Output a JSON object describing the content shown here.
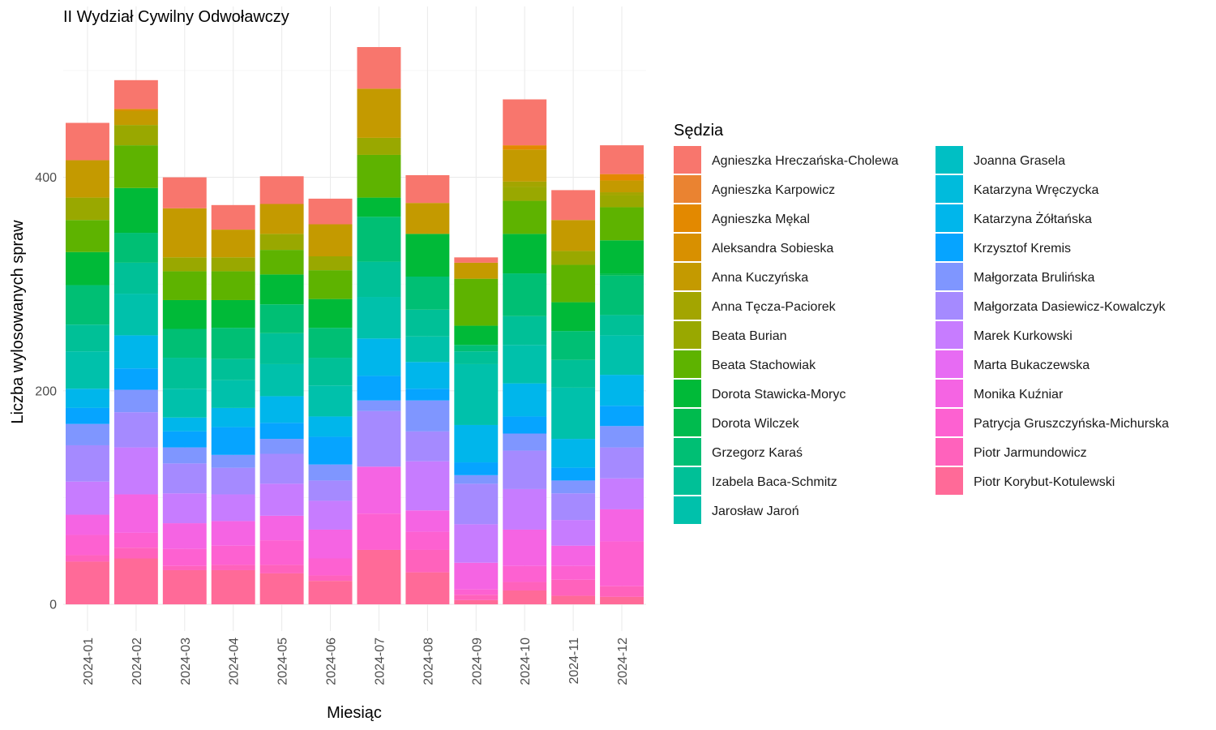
{
  "chart_data": {
    "type": "bar",
    "stacked": true,
    "title": "II Wydział Cywilny Odwoławczy",
    "xlabel": "Miesiąc",
    "ylabel": "Liczba wylosowanych spraw",
    "ylim": [
      -25,
      560
    ],
    "yticks": [
      0,
      200,
      400
    ],
    "grid": true,
    "legend": {
      "title": "Sędzia",
      "position": "right",
      "columns": 2
    },
    "categories": [
      "2024-01",
      "2024-02",
      "2024-03",
      "2024-04",
      "2024-05",
      "2024-06",
      "2024-07",
      "2024-08",
      "2024-09",
      "2024-10",
      "2024-11",
      "2024-12"
    ],
    "series": [
      {
        "name": "Agnieszka Hreczańska-Cholewa",
        "color": "#F8766D",
        "values": [
          35,
          27,
          29,
          23,
          26,
          24,
          39,
          26,
          5,
          43,
          28,
          27
        ]
      },
      {
        "name": "Agnieszka Karpowicz",
        "color": "#EA8331",
        "values": [
          0,
          0,
          0,
          0,
          0,
          0,
          0,
          0,
          0,
          0,
          0,
          0
        ]
      },
      {
        "name": "Agnieszka Mękal",
        "color": "#E38900",
        "values": [
          0,
          0,
          0,
          0,
          0,
          0,
          0,
          0,
          0,
          4,
          0,
          6
        ]
      },
      {
        "name": "Aleksandra Sobieska",
        "color": "#D89000",
        "values": [
          0,
          2,
          0,
          0,
          0,
          0,
          0,
          0,
          0,
          0,
          0,
          0
        ]
      },
      {
        "name": "Anna Kuczyńska",
        "color": "#C49A00",
        "values": [
          35,
          13,
          46,
          26,
          28,
          30,
          46,
          29,
          15,
          30,
          29,
          11
        ]
      },
      {
        "name": "Anna Tęcza-Paciorek",
        "color": "#A3A500",
        "values": [
          0,
          0,
          0,
          0,
          0,
          0,
          0,
          0,
          0,
          5,
          0,
          3
        ]
      },
      {
        "name": "Beata Burian",
        "color": "#99A800",
        "values": [
          21,
          19,
          13,
          13,
          15,
          13,
          16,
          0,
          0,
          13,
          13,
          11
        ]
      },
      {
        "name": "Beata Stachowiak",
        "color": "#5EB300",
        "values": [
          30,
          40,
          27,
          27,
          23,
          27,
          40,
          0,
          44,
          31,
          35,
          31
        ]
      },
      {
        "name": "Dorota Stawicka-Moryc",
        "color": "#00BA38",
        "values": [
          31,
          42,
          27,
          26,
          28,
          27,
          18,
          40,
          18,
          37,
          27,
          31
        ]
      },
      {
        "name": "Dorota Wilczek",
        "color": "#00BB4E",
        "values": [
          0,
          0,
          0,
          0,
          0,
          0,
          0,
          0,
          0,
          0,
          0,
          2
        ]
      },
      {
        "name": "Grzegorz Karaś",
        "color": "#00BF74",
        "values": [
          37,
          28,
          27,
          29,
          27,
          28,
          42,
          31,
          6,
          40,
          27,
          37
        ]
      },
      {
        "name": "Izabela Baca-Schmitz",
        "color": "#00C097",
        "values": [
          25,
          29,
          29,
          20,
          29,
          26,
          33,
          25,
          12,
          27,
          26,
          19
        ]
      },
      {
        "name": "Jarosław Jaroń",
        "color": "#00C1AB",
        "values": [
          35,
          39,
          27,
          26,
          30,
          29,
          39,
          24,
          57,
          36,
          48,
          37
        ]
      },
      {
        "name": "Joanna Grasela",
        "color": "#00BFC4",
        "values": [
          0,
          0,
          0,
          0,
          0,
          0,
          0,
          0,
          0,
          0,
          0,
          0
        ]
      },
      {
        "name": "Katarzyna Wręczycka",
        "color": "#00BBDC",
        "values": [
          0,
          0,
          0,
          0,
          0,
          0,
          0,
          0,
          0,
          0,
          0,
          0
        ]
      },
      {
        "name": "Katarzyna Żółtańska",
        "color": "#00B6EB",
        "values": [
          18,
          31,
          13,
          18,
          25,
          19,
          35,
          25,
          35,
          31,
          27,
          29
        ]
      },
      {
        "name": "Krzysztof Kremis",
        "color": "#06A4FF",
        "values": [
          15,
          20,
          15,
          26,
          15,
          26,
          23,
          11,
          12,
          16,
          12,
          19
        ]
      },
      {
        "name": "Małgorzata Brulińska",
        "color": "#7F96FF",
        "values": [
          20,
          21,
          15,
          12,
          14,
          15,
          10,
          29,
          8,
          16,
          12,
          20
        ]
      },
      {
        "name": "Małgorzata Dasiewicz-Kowalczyk",
        "color": "#A58AFF",
        "values": [
          34,
          33,
          28,
          25,
          28,
          19,
          52,
          28,
          38,
          36,
          25,
          29
        ]
      },
      {
        "name": "Marek Kurkowski",
        "color": "#C77CFF",
        "values": [
          31,
          44,
          28,
          25,
          30,
          27,
          0,
          46,
          36,
          38,
          24,
          29
        ]
      },
      {
        "name": "Marta Bukaczewska",
        "color": "#E76BF3",
        "values": [
          0,
          0,
          0,
          0,
          0,
          0,
          0,
          0,
          0,
          0,
          0,
          0
        ]
      },
      {
        "name": "Monika Kuźniar",
        "color": "#F564E3",
        "values": [
          19,
          36,
          24,
          23,
          23,
          27,
          44,
          20,
          25,
          34,
          19,
          30
        ]
      },
      {
        "name": "Patrycja Gruszczyńska-Michurska",
        "color": "#FD61D1",
        "values": [
          19,
          14,
          16,
          18,
          23,
          16,
          34,
          17,
          5,
          15,
          13,
          42
        ]
      },
      {
        "name": "Piotr Jarmundowicz",
        "color": "#FF62BC",
        "values": [
          6,
          10,
          4,
          5,
          8,
          5,
          0,
          21,
          5,
          8,
          15,
          10
        ]
      },
      {
        "name": "Piotr Korybut-Kotulewski",
        "color": "#FF6A98",
        "values": [
          40,
          43,
          32,
          32,
          29,
          22,
          51,
          30,
          4,
          13,
          8,
          7
        ]
      }
    ]
  }
}
